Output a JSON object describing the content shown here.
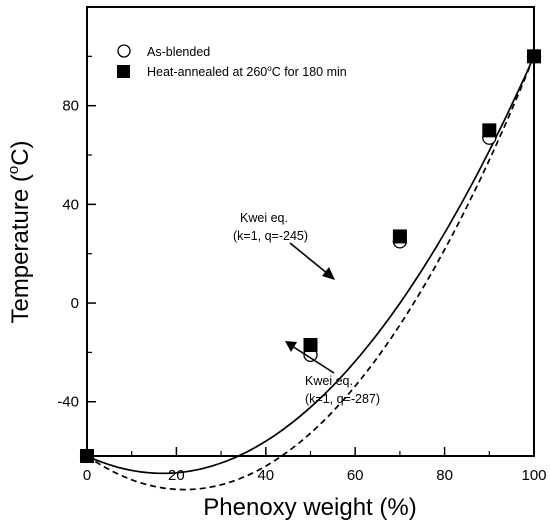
{
  "chart_data": {
    "type": "scatter",
    "xlabel": "Phenoxy weight (%)",
    "ylabel_main": "Temperature (",
    "ylabel_sup": "o",
    "ylabel_end": "C)",
    "xlim": [
      0,
      100
    ],
    "ylim": [
      -62,
      120
    ],
    "xticks": [
      0,
      20,
      40,
      60,
      80,
      100
    ],
    "yticks": [
      -40,
      0,
      40,
      80
    ],
    "series": [
      {
        "name": "As-blended",
        "marker": "open-circle",
        "x": [
          0,
          50,
          70,
          90,
          100
        ],
        "y": [
          -62,
          -21,
          25,
          67,
          100
        ]
      },
      {
        "name": "Heat-annealed at 260°C for 180 min",
        "name_parts": [
          "Heat-annealed at 260",
          "o",
          "C for 180 min"
        ],
        "marker": "filled-square",
        "x": [
          0,
          50,
          70,
          90,
          100
        ],
        "y": [
          -62,
          -17,
          27,
          70,
          100
        ]
      }
    ],
    "fits": [
      {
        "label1": "Kwei eq.",
        "label2": "(k=1, q=-245)",
        "style": "solid",
        "k": 1,
        "q": -245,
        "tg1": -62,
        "tg2": 100
      },
      {
        "label1": "Kwei eq.",
        "label2": "(k=1, q=-287)",
        "style": "dashed",
        "k": 1,
        "q": -287,
        "tg1": -62,
        "tg2": 100
      }
    ],
    "colors": {
      "ink": "#000000",
      "background": "#ffffff"
    }
  }
}
